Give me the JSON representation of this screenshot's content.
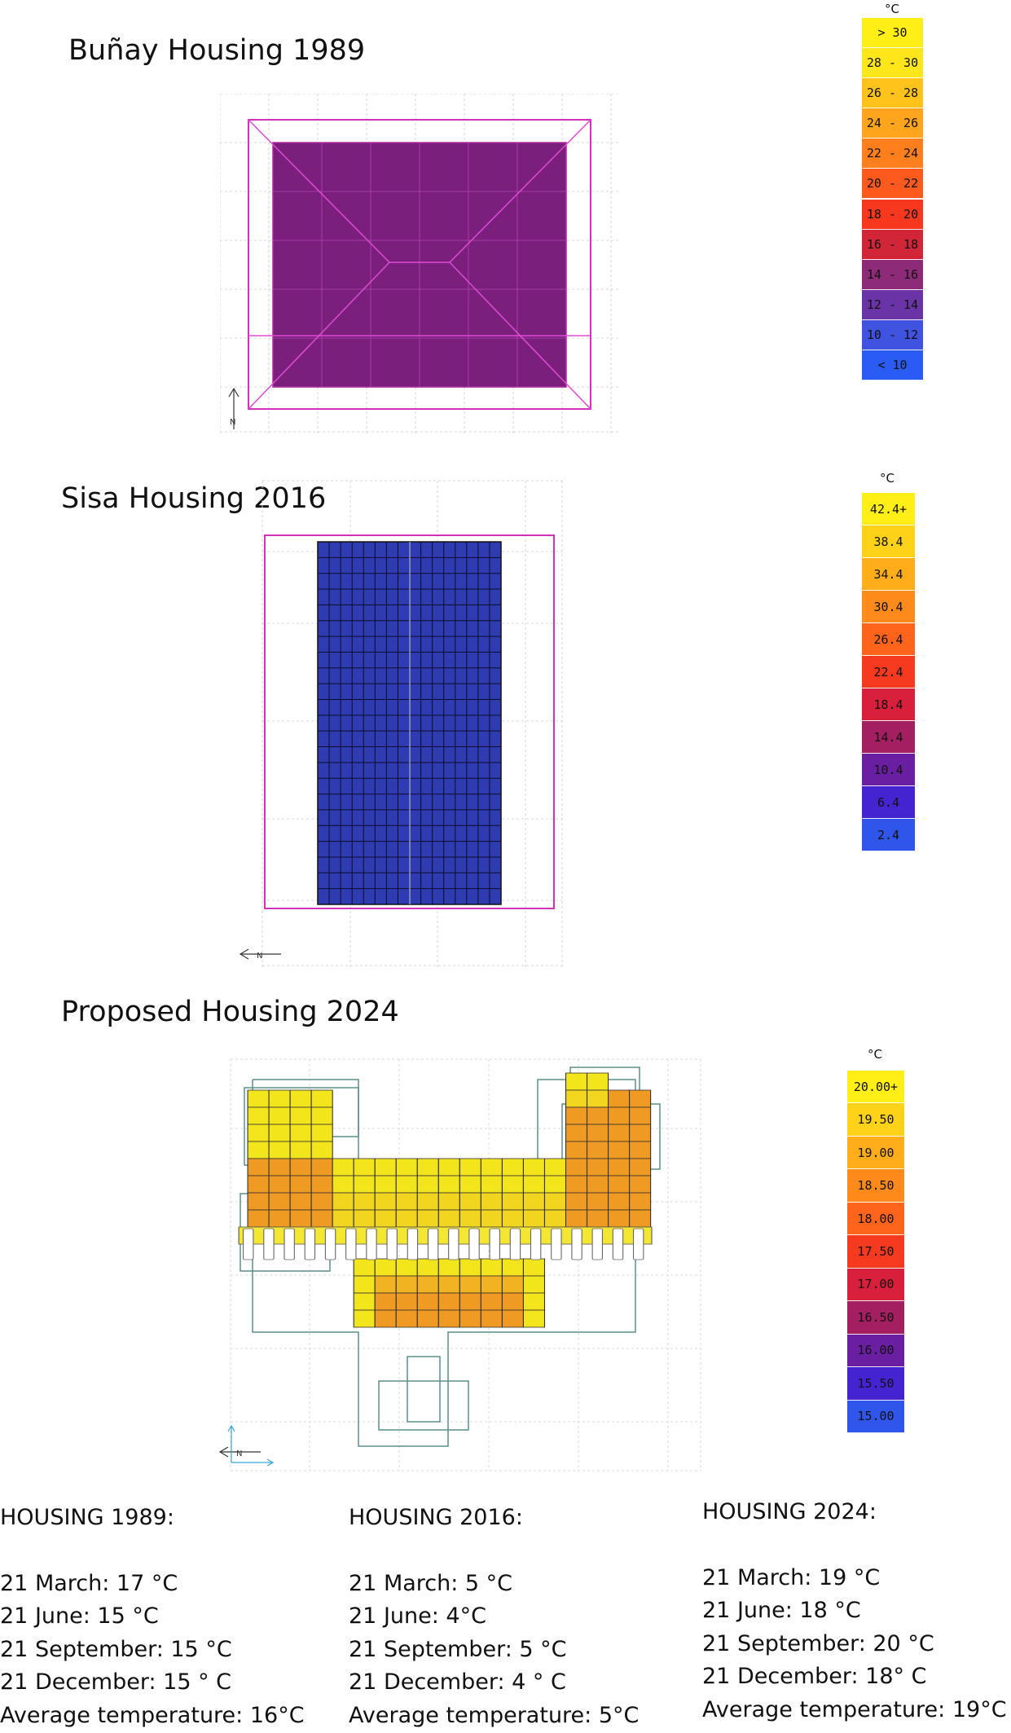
{
  "sections": [
    {
      "title": "Buñay Housing 1989",
      "roof_color": "#7a1f7c",
      "legend_unit": "°C",
      "legend": [
        {
          "label": "> 30",
          "color": "#ffef16"
        },
        {
          "label": "28 - 30",
          "color": "#ffe61a"
        },
        {
          "label": "26 - 28",
          "color": "#ffc31b"
        },
        {
          "label": "24 - 26",
          "color": "#ffa41d"
        },
        {
          "label": "22 - 24",
          "color": "#ff7f1c"
        },
        {
          "label": "20 - 22",
          "color": "#ff5a1e"
        },
        {
          "label": "18 - 20",
          "color": "#f7381f"
        },
        {
          "label": "16 - 18",
          "color": "#d02638"
        },
        {
          "label": "14 - 16",
          "color": "#8e2b79"
        },
        {
          "label": "12 - 14",
          "color": "#6a34a6"
        },
        {
          "label": "10 - 12",
          "color": "#3f52e0"
        },
        {
          "label": "< 10",
          "color": "#2a5cf5"
        }
      ]
    },
    {
      "title": "Sisa Housing 2016",
      "roof_color": "#2f3bb0",
      "legend_unit": "°C",
      "legend": [
        {
          "label": "42.4+",
          "color": "#ffef16"
        },
        {
          "label": "38.4",
          "color": "#ffd21a"
        },
        {
          "label": "34.4",
          "color": "#ffad1b"
        },
        {
          "label": "30.4",
          "color": "#ff8a1c"
        },
        {
          "label": "26.4",
          "color": "#ff641d"
        },
        {
          "label": "22.4",
          "color": "#f53a1f"
        },
        {
          "label": "18.4",
          "color": "#d8203c"
        },
        {
          "label": "14.4",
          "color": "#a41f62"
        },
        {
          "label": "10.4",
          "color": "#6a1fa3"
        },
        {
          "label": "6.4",
          "color": "#4423d1"
        },
        {
          "label": "2.4",
          "color": "#2f55ea"
        }
      ]
    },
    {
      "title": "Proposed Housing 2024",
      "legend_unit": "°C",
      "legend": [
        {
          "label": "20.00+",
          "color": "#ffef16"
        },
        {
          "label": "19.50",
          "color": "#ffd21a"
        },
        {
          "label": "19.00",
          "color": "#ffad1b"
        },
        {
          "label": "18.50",
          "color": "#ff8a1c"
        },
        {
          "label": "18.00",
          "color": "#ff641d"
        },
        {
          "label": "17.50",
          "color": "#f53a1f"
        },
        {
          "label": "17.00",
          "color": "#d8203c"
        },
        {
          "label": "16.50",
          "color": "#a41f62"
        },
        {
          "label": "16.00",
          "color": "#6a1fa3"
        },
        {
          "label": "15.50",
          "color": "#4423d1"
        },
        {
          "label": "15.00",
          "color": "#2f55ea"
        }
      ]
    }
  ],
  "summary": [
    {
      "heading": "HOUSING 1989:",
      "lines": [
        "21 March: 17 °C",
        "21 June: 15 °C",
        "21 September: 15 °C",
        "21 December: 15 ° C",
        "Average temperature: 16°C"
      ]
    },
    {
      "heading": "HOUSING 2016:",
      "lines": [
        "21 March: 5 °C",
        "21 June: 4°C",
        "21 September: 5 °C",
        "21 December: 4 ° C",
        "Average temperature: 5°C"
      ]
    },
    {
      "heading": "HOUSING 2024:",
      "lines": [
        "21 March: 19 °C",
        "21 June: 18 °C",
        "21 September: 20 °C",
        "21 December: 18° C",
        "Average temperature: 19°C"
      ]
    }
  ]
}
